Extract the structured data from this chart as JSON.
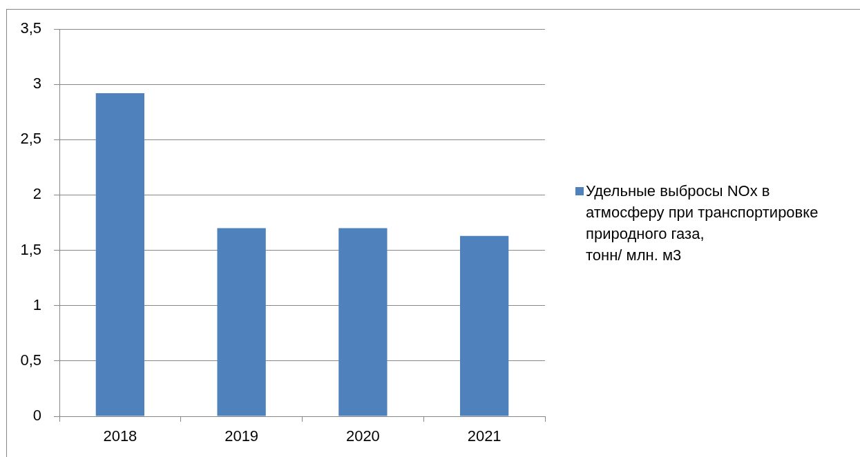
{
  "chart_data": {
    "type": "bar",
    "categories": [
      "2018",
      "2019",
      "2020",
      "2021"
    ],
    "series": [
      {
        "name": "Удельные выбросы NOx в атмосферу при транспортировке природного газа,\nтонн/ млн. м3",
        "color": "#4f81bd",
        "values": [
          2.92,
          1.7,
          1.7,
          1.63
        ]
      }
    ],
    "ylim": [
      0,
      3.5
    ],
    "yticks": [
      0,
      {
        "value": 0.5,
        "label": "0,5"
      },
      1,
      {
        "value": 1.5,
        "label": "1,5"
      },
      2,
      {
        "value": 2.5,
        "label": "2,5"
      },
      3,
      {
        "value": 3.5,
        "label": "3,5"
      }
    ],
    "grid": "y",
    "legend": "right"
  }
}
